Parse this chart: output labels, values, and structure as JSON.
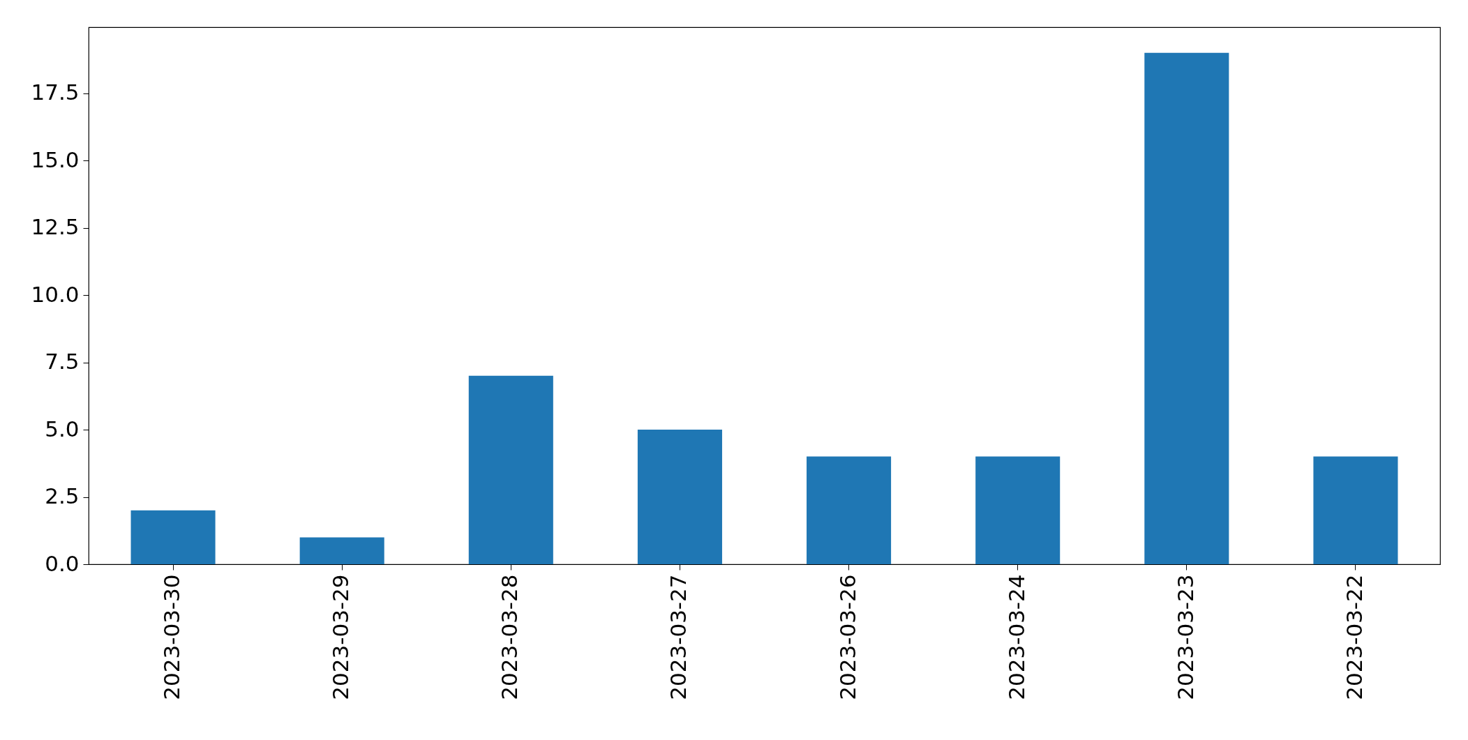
{
  "chart_data": {
    "type": "bar",
    "categories": [
      "2023-03-30",
      "2023-03-29",
      "2023-03-28",
      "2023-03-27",
      "2023-03-26",
      "2023-03-24",
      "2023-03-23",
      "2023-03-22"
    ],
    "values": [
      2,
      1,
      7,
      5,
      4,
      4,
      19,
      4
    ],
    "color": "#1f77b4",
    "ylim": [
      0,
      19.95
    ],
    "yticks": [
      {
        "value": 0,
        "label": "0.0"
      },
      2.5,
      {
        "value": 5,
        "label": "5.0"
      },
      7.5,
      {
        "value": 10,
        "label": "10.0"
      },
      12.5,
      {
        "value": 15,
        "label": "15.0"
      },
      17.5
    ],
    "grid": false
  }
}
